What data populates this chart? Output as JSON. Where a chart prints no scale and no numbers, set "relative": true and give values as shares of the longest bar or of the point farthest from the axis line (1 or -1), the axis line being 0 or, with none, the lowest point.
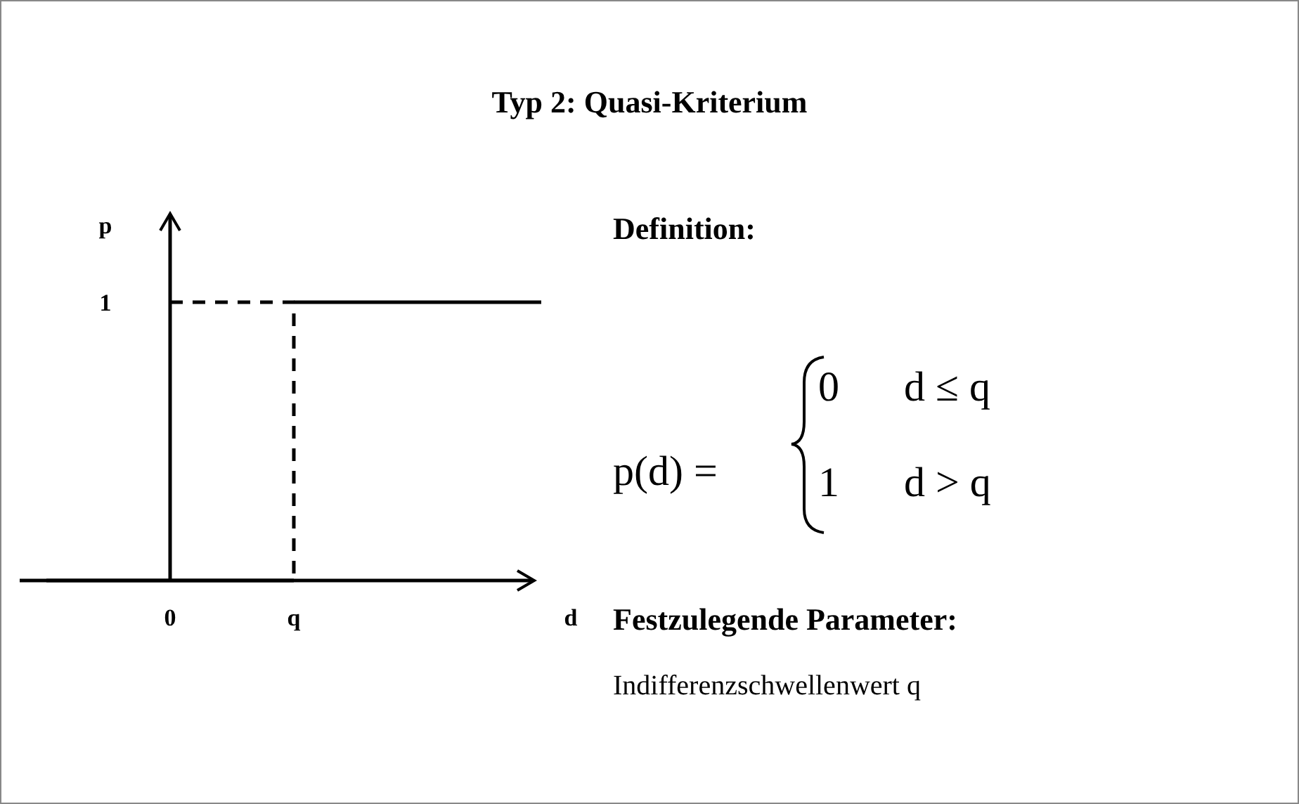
{
  "chart_data": {
    "type": "line",
    "title": "Typ 2: Quasi-Kriterium",
    "xlabel": "d",
    "ylabel": "p",
    "relative": true,
    "categories": [
      null,
      "0",
      "q",
      null,
      null
    ],
    "series": [
      {
        "color": "#000000",
        "values": [
          0,
          0,
          0,
          null,
          null
        ],
        "line_style": "solid"
      },
      {
        "color": "#000000",
        "values": [
          null,
          null,
          1,
          1,
          1
        ],
        "line_style": "solid"
      },
      {
        "type": "step",
        "color": "#000000",
        "values": [
          null,
          1,
          0,
          null,
          null
        ],
        "line_style": "dashed"
      }
    ],
    "annotations": [
      "1",
      "Definition:",
      "p(d) =",
      "0",
      "d ≤ q",
      "1",
      "d > q",
      "Festzulegende Parameter:",
      "Indifferenzschwellenwert q"
    ]
  }
}
